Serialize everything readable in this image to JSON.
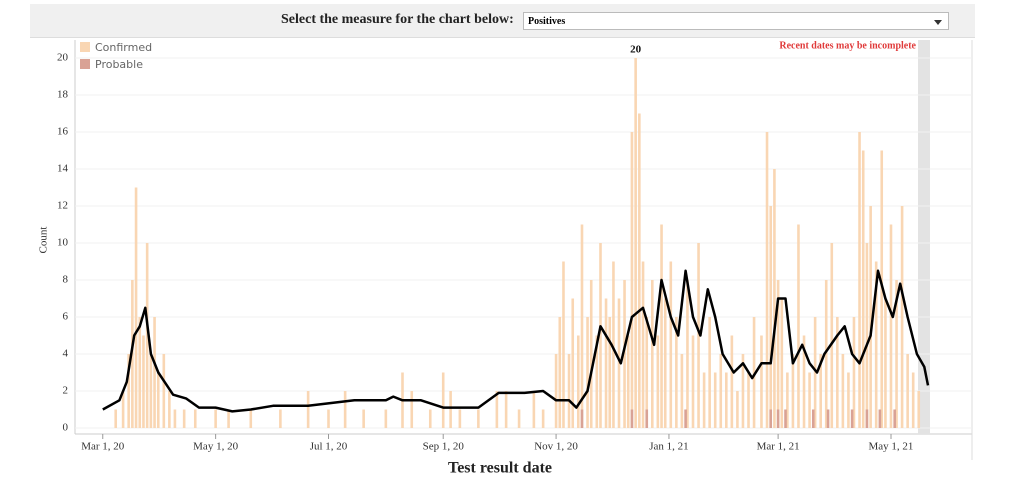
{
  "header": {
    "prompt": "Select the measure for the chart below:",
    "selected": "Positives"
  },
  "chart_data": {
    "type": "bar",
    "x_label": "Test result date",
    "y_label": "Count",
    "note": "Recent dates may be incomplete",
    "annotations": [
      {
        "text": "20",
        "x": "2020-12-14",
        "y": 20
      }
    ],
    "xlim": [
      "2020-02-15",
      "2021-06-10"
    ],
    "xticks": [
      {
        "value": "2020-03-01",
        "label": "Mar 1, 20"
      },
      {
        "value": "2020-05-01",
        "label": "May 1, 20"
      },
      {
        "value": "2020-07-01",
        "label": "Jul 1, 20"
      },
      {
        "value": "2020-09-01",
        "label": "Sep 1, 20"
      },
      {
        "value": "2020-11-01",
        "label": "Nov 1, 20"
      },
      {
        "value": "2021-01-01",
        "label": "Jan 1, 21"
      },
      {
        "value": "2021-03-01",
        "label": "Mar 1, 21"
      },
      {
        "value": "2021-05-01",
        "label": "May 1, 21"
      }
    ],
    "ylim": [
      0,
      21
    ],
    "yticks": [
      0,
      2,
      4,
      6,
      8,
      10,
      12,
      14,
      16,
      18,
      20
    ],
    "grid": true,
    "series": [
      {
        "name": "Confirmed",
        "color": "#f9d6b3",
        "x": [
          "2020-03-08",
          "2020-03-12",
          "2020-03-15",
          "2020-03-17",
          "2020-03-19",
          "2020-03-21",
          "2020-03-23",
          "2020-03-25",
          "2020-03-27",
          "2020-03-29",
          "2020-03-31",
          "2020-04-03",
          "2020-04-06",
          "2020-04-09",
          "2020-04-14",
          "2020-04-20",
          "2020-05-01",
          "2020-05-08",
          "2020-05-20",
          "2020-06-05",
          "2020-06-20",
          "2020-07-01",
          "2020-07-10",
          "2020-07-20",
          "2020-08-01",
          "2020-08-10",
          "2020-08-15",
          "2020-08-25",
          "2020-09-01",
          "2020-09-05",
          "2020-09-10",
          "2020-09-20",
          "2020-09-30",
          "2020-10-05",
          "2020-10-12",
          "2020-10-20",
          "2020-10-25",
          "2020-11-01",
          "2020-11-03",
          "2020-11-05",
          "2020-11-08",
          "2020-11-10",
          "2020-11-13",
          "2020-11-15",
          "2020-11-18",
          "2020-11-20",
          "2020-11-23",
          "2020-11-25",
          "2020-11-28",
          "2020-11-30",
          "2020-12-02",
          "2020-12-05",
          "2020-12-08",
          "2020-12-10",
          "2020-12-12",
          "2020-12-14",
          "2020-12-16",
          "2020-12-18",
          "2020-12-20",
          "2020-12-23",
          "2020-12-26",
          "2020-12-28",
          "2020-12-30",
          "2021-01-02",
          "2021-01-05",
          "2021-01-08",
          "2021-01-11",
          "2021-01-14",
          "2021-01-17",
          "2021-01-20",
          "2021-01-23",
          "2021-01-26",
          "2021-01-29",
          "2021-02-01",
          "2021-02-04",
          "2021-02-07",
          "2021-02-10",
          "2021-02-13",
          "2021-02-16",
          "2021-02-20",
          "2021-02-23",
          "2021-02-25",
          "2021-02-27",
          "2021-03-01",
          "2021-03-03",
          "2021-03-06",
          "2021-03-09",
          "2021-03-12",
          "2021-03-15",
          "2021-03-18",
          "2021-03-21",
          "2021-03-24",
          "2021-03-27",
          "2021-03-30",
          "2021-04-02",
          "2021-04-05",
          "2021-04-08",
          "2021-04-11",
          "2021-04-14",
          "2021-04-16",
          "2021-04-18",
          "2021-04-20",
          "2021-04-23",
          "2021-04-26",
          "2021-04-28",
          "2021-05-01",
          "2021-05-04",
          "2021-05-07",
          "2021-05-10",
          "2021-05-13",
          "2021-05-16"
        ],
        "values": [
          1,
          2,
          4,
          8,
          13,
          6,
          5,
          10,
          4,
          6,
          3,
          4,
          2,
          1,
          1,
          1,
          1,
          1,
          1,
          1,
          2,
          1,
          2,
          1,
          1,
          3,
          2,
          1,
          3,
          2,
          1,
          1,
          2,
          2,
          1,
          2,
          1,
          4,
          6,
          9,
          4,
          7,
          5,
          11,
          6,
          8,
          5,
          10,
          7,
          6,
          9,
          7,
          8,
          5,
          16,
          20,
          17,
          9,
          6,
          8,
          5,
          11,
          7,
          9,
          6,
          4,
          8,
          5,
          10,
          3,
          6,
          3,
          4,
          3,
          5,
          2,
          4,
          3,
          6,
          5,
          16,
          12,
          14,
          8,
          7,
          3,
          4,
          11,
          5,
          3,
          6,
          4,
          8,
          10,
          6,
          4,
          3,
          6,
          16,
          15,
          10,
          12,
          9,
          15,
          7,
          11,
          8,
          12,
          4,
          3,
          2
        ]
      },
      {
        "name": "Probable",
        "color": "#d9a295",
        "x": [
          "2020-11-15",
          "2020-12-12",
          "2020-12-20",
          "2021-01-10",
          "2021-02-25",
          "2021-03-01",
          "2021-03-05",
          "2021-03-20",
          "2021-03-28",
          "2021-04-10",
          "2021-04-18",
          "2021-04-25",
          "2021-05-03"
        ],
        "values": [
          1,
          1,
          1,
          1,
          1,
          1,
          1,
          1,
          1,
          1,
          1,
          1,
          1
        ]
      }
    ],
    "line": {
      "color": "#000000",
      "x": [
        "2020-03-01",
        "2020-03-10",
        "2020-03-14",
        "2020-03-18",
        "2020-03-21",
        "2020-03-24",
        "2020-03-27",
        "2020-03-31",
        "2020-04-08",
        "2020-04-15",
        "2020-04-22",
        "2020-05-01",
        "2020-05-10",
        "2020-05-20",
        "2020-06-01",
        "2020-06-20",
        "2020-07-15",
        "2020-08-01",
        "2020-08-05",
        "2020-08-10",
        "2020-08-20",
        "2020-09-01",
        "2020-09-20",
        "2020-10-01",
        "2020-10-15",
        "2020-10-25",
        "2020-11-01",
        "2020-11-08",
        "2020-11-12",
        "2020-11-18",
        "2020-11-25",
        "2020-12-01",
        "2020-12-06",
        "2020-12-12",
        "2020-12-18",
        "2020-12-24",
        "2020-12-28",
        "2021-01-02",
        "2021-01-06",
        "2021-01-10",
        "2021-01-14",
        "2021-01-18",
        "2021-01-22",
        "2021-01-26",
        "2021-01-30",
        "2021-02-05",
        "2021-02-10",
        "2021-02-15",
        "2021-02-20",
        "2021-02-25",
        "2021-03-01",
        "2021-03-05",
        "2021-03-09",
        "2021-03-14",
        "2021-03-18",
        "2021-03-22",
        "2021-03-26",
        "2021-04-02",
        "2021-04-06",
        "2021-04-10",
        "2021-04-14",
        "2021-04-20",
        "2021-04-24",
        "2021-04-28",
        "2021-05-02",
        "2021-05-06",
        "2021-05-10",
        "2021-05-15",
        "2021-05-19",
        "2021-05-21"
      ],
      "values": [
        1,
        1.5,
        2.5,
        5,
        5.5,
        6.5,
        4,
        3,
        1.8,
        1.6,
        1.1,
        1.1,
        0.9,
        1,
        1.2,
        1.2,
        1.5,
        1.5,
        1.7,
        1.5,
        1.5,
        1.1,
        1.1,
        1.9,
        1.9,
        2,
        1.5,
        1.5,
        1.1,
        2,
        5.5,
        4.5,
        3.5,
        6,
        6.5,
        4.5,
        8,
        6,
        5,
        8.5,
        6,
        5,
        7.5,
        6,
        4,
        3,
        3.5,
        2.7,
        3.5,
        3.5,
        7,
        7,
        3.5,
        4.5,
        3.5,
        3,
        4,
        5,
        5.5,
        4,
        3.5,
        5,
        8.5,
        7,
        6,
        7.8,
        6,
        4,
        3.3,
        2.3
      ]
    }
  }
}
